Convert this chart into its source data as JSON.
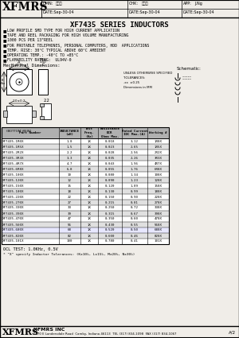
{
  "title": "XF7435 SERIES INDUCTORS",
  "company": "XFMRS",
  "bullets": [
    "LOW PROFILE SMD TYPE FOR HIGH CURRENT APPLICATION",
    "TAPE AND REEL PACKAGING FOR HIGH VOLUME MANUFACTURING",
    "1000 PCS PER 13\"REEL",
    "FOR PROTABLE TELEPHONES, PERSONAL COMPUTERS, HDD  APPLICATIONS",
    "TEMP. RISE: 30°C TYPICAL ABOVE 60°C AMBIENT",
    "OPERATING TEMP.: -40°C TO +85°C",
    "FLAMABILITY RATING:  UL94V-0"
  ],
  "mech_dim_label": "Mechanical Dimensions:",
  "table_data": [
    [
      "XF7435-1R0X",
      "1.0",
      "1K",
      "0.018",
      "3.12",
      "1R0X"
    ],
    [
      "XF7435-1R5X",
      "1.5",
      "1K",
      "0.023",
      "2.65",
      "1R5X"
    ],
    [
      "XF7435-2R2X",
      "2.2",
      "1K",
      "0.028",
      "2.56",
      "2R2X"
    ],
    [
      "XF7435-3R3X",
      "3.3",
      "1K",
      "0.035",
      "2.26",
      "3R3X"
    ],
    [
      "XF7435-4R7X",
      "4.7",
      "1K",
      "0.043",
      "1.96",
      "4R7X"
    ],
    [
      "XF7435-6R8X",
      "6.8",
      "1K",
      "0.055",
      "1.76",
      "6R8X"
    ],
    [
      "XF7435-100X",
      "10",
      "1K",
      "0.080",
      "1.34",
      "100X"
    ],
    [
      "XF7435-120X",
      "12",
      "1K",
      "0.090",
      "1.23",
      "120X"
    ],
    [
      "XF7435-150X",
      "15",
      "1K",
      "0.120",
      "1.09",
      "150X"
    ],
    [
      "XF7435-180X",
      "18",
      "1K",
      "0.130",
      "0.99",
      "180X"
    ],
    [
      "XF7435-220X",
      "22",
      "1K",
      "0.150",
      "0.90",
      "220X"
    ],
    [
      "XF7435-270X",
      "27",
      "1K",
      "0.215",
      "0.81",
      "270X"
    ],
    [
      "XF7435-330X",
      "33",
      "1K",
      "0.250",
      "0.72",
      "330X"
    ],
    [
      "XF7435-390X",
      "39",
      "1K",
      "0.315",
      "0.67",
      "390X"
    ],
    [
      "XF7435-470X",
      "47",
      "1K",
      "0.350",
      "0.60",
      "470X"
    ],
    [
      "XF7435-560X",
      "56",
      "1K",
      "0.430",
      "0.55",
      "560X"
    ],
    [
      "XF7435-680X",
      "68",
      "1K",
      "0.520",
      "0.50",
      "680X"
    ],
    [
      "XF7435-820X",
      "82",
      "1K",
      "0.600",
      "0.46",
      "820X"
    ],
    [
      "XF7435-101X",
      "100",
      "1K",
      "0.780",
      "0.41",
      "101X"
    ]
  ],
  "col_headers": [
    "Part Number",
    "INDUCTANCE\n(uH)",
    "Test\nFreq.\n(Hz)",
    "Resistance\nDCR\nOhms Max.",
    "Rated Current\nIDC Max.(A)",
    "Working #"
  ],
  "footer1": "OCL TEST: 1.0KHz, 0.5V",
  "footer2": "* \"X\" specify Inductor Tolerances: (K±10%, L±15%, M±20%, N±30%)",
  "footer_company": "XFMRS",
  "footer_company2": "XFMRS INC",
  "footer_address": "7670 E Landersdale Road  Camby, Indiana 46113  TEL (317) 834-1098  FAX (317) 834-1067",
  "page": "A/2",
  "bg_color": "#f0ede8",
  "table_header_bg": "#b0b0b0",
  "table_alt_bg": "#e0e0e0",
  "highlight_row": "XF7435-680X"
}
